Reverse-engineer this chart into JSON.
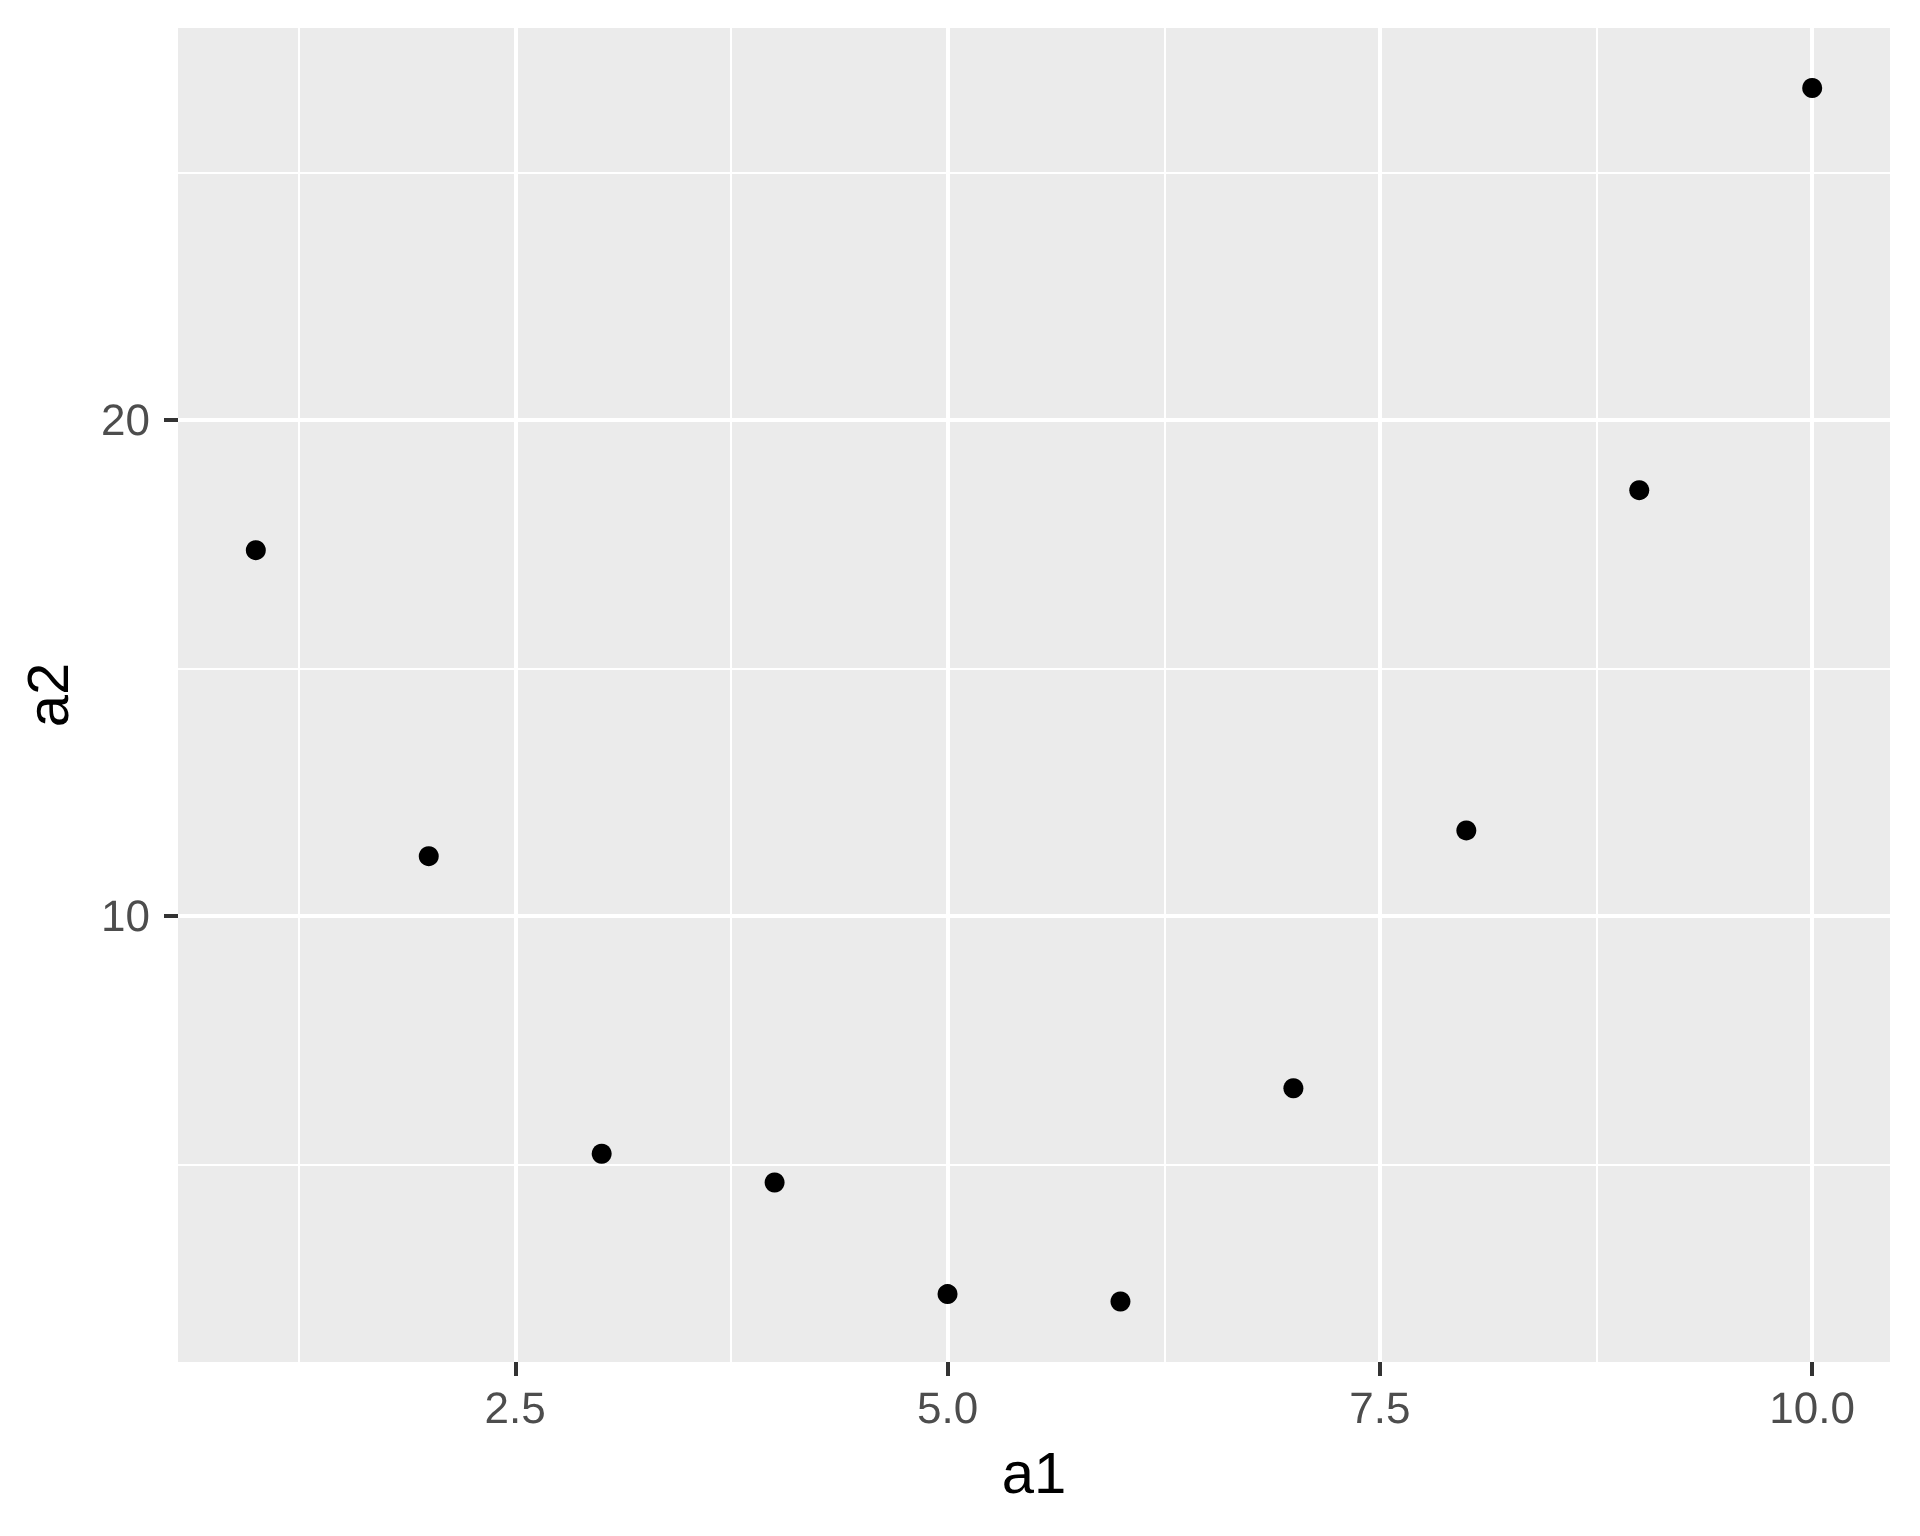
{
  "chart_data": {
    "type": "scatter",
    "xlabel": "a1",
    "ylabel": "a2",
    "x": [
      1,
      2,
      3,
      4,
      5,
      6,
      7,
      8,
      9,
      10
    ],
    "values": [
      17.37,
      11.2,
      5.2,
      4.62,
      2.37,
      2.22,
      6.52,
      11.72,
      18.58,
      26.69
    ],
    "color": "#000000",
    "marker": "circle",
    "xlim": [
      0.55,
      10.45
    ],
    "xticks": [
      {
        "value": 1.25,
        "label": null
      },
      2.5,
      {
        "value": 3.75,
        "label": null
      },
      {
        "value": 5,
        "label": "5.0"
      },
      {
        "value": 6.25,
        "label": null
      },
      7.5,
      {
        "value": 8.75,
        "label": null
      },
      {
        "value": 10,
        "label": "10.0"
      }
    ],
    "ylim": [
      1.0,
      27.9
    ],
    "yticks": [
      {
        "value": 5,
        "label": null
      },
      10,
      {
        "value": 15,
        "label": null
      },
      20,
      {
        "value": 25,
        "label": null
      }
    ],
    "grid": true
  }
}
